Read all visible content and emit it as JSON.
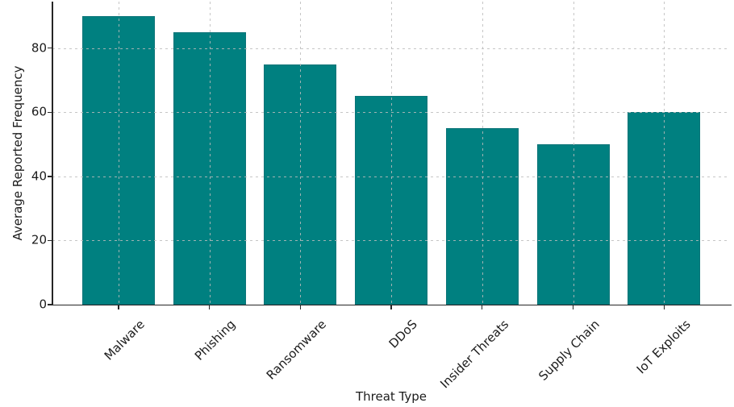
{
  "chart_data": {
    "type": "bar",
    "title": "",
    "xlabel": "Threat Type",
    "ylabel": "Average Reported Frequency",
    "categories": [
      "Malware",
      "Phishing",
      "Ransomware",
      "DDoS",
      "Insider Threats",
      "Supply Chain",
      "IoT Exploits"
    ],
    "values": [
      90,
      85,
      75,
      65,
      55,
      50,
      60
    ],
    "yticks": [
      0,
      20,
      40,
      60,
      80
    ],
    "ylim": [
      0,
      94.5
    ],
    "grid": true,
    "legend_position": "none",
    "bar_color": "#008080",
    "bar_edge_color": "#0a7478",
    "grid_color": "#bcbcbc",
    "axis_color": "#262626",
    "text_color": "#1c1c1c"
  }
}
